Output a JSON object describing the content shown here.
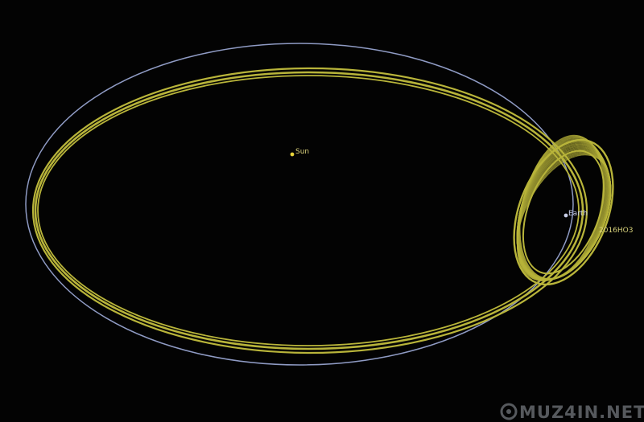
{
  "labels": {
    "sun": "Sun",
    "earth": "Earth",
    "asteroid": "2016HO3"
  },
  "watermark": {
    "text": "MUZ4IN.NET"
  },
  "colors": {
    "background": "#030303",
    "earth_orbit": "#8f9bc4",
    "asteroid_orbit": "#b8b43a",
    "sun": "#e7d33a",
    "earth_label": "#c7cde6",
    "sun_label": "#d8cf7a",
    "asteroid_label": "#d6d07a"
  }
}
